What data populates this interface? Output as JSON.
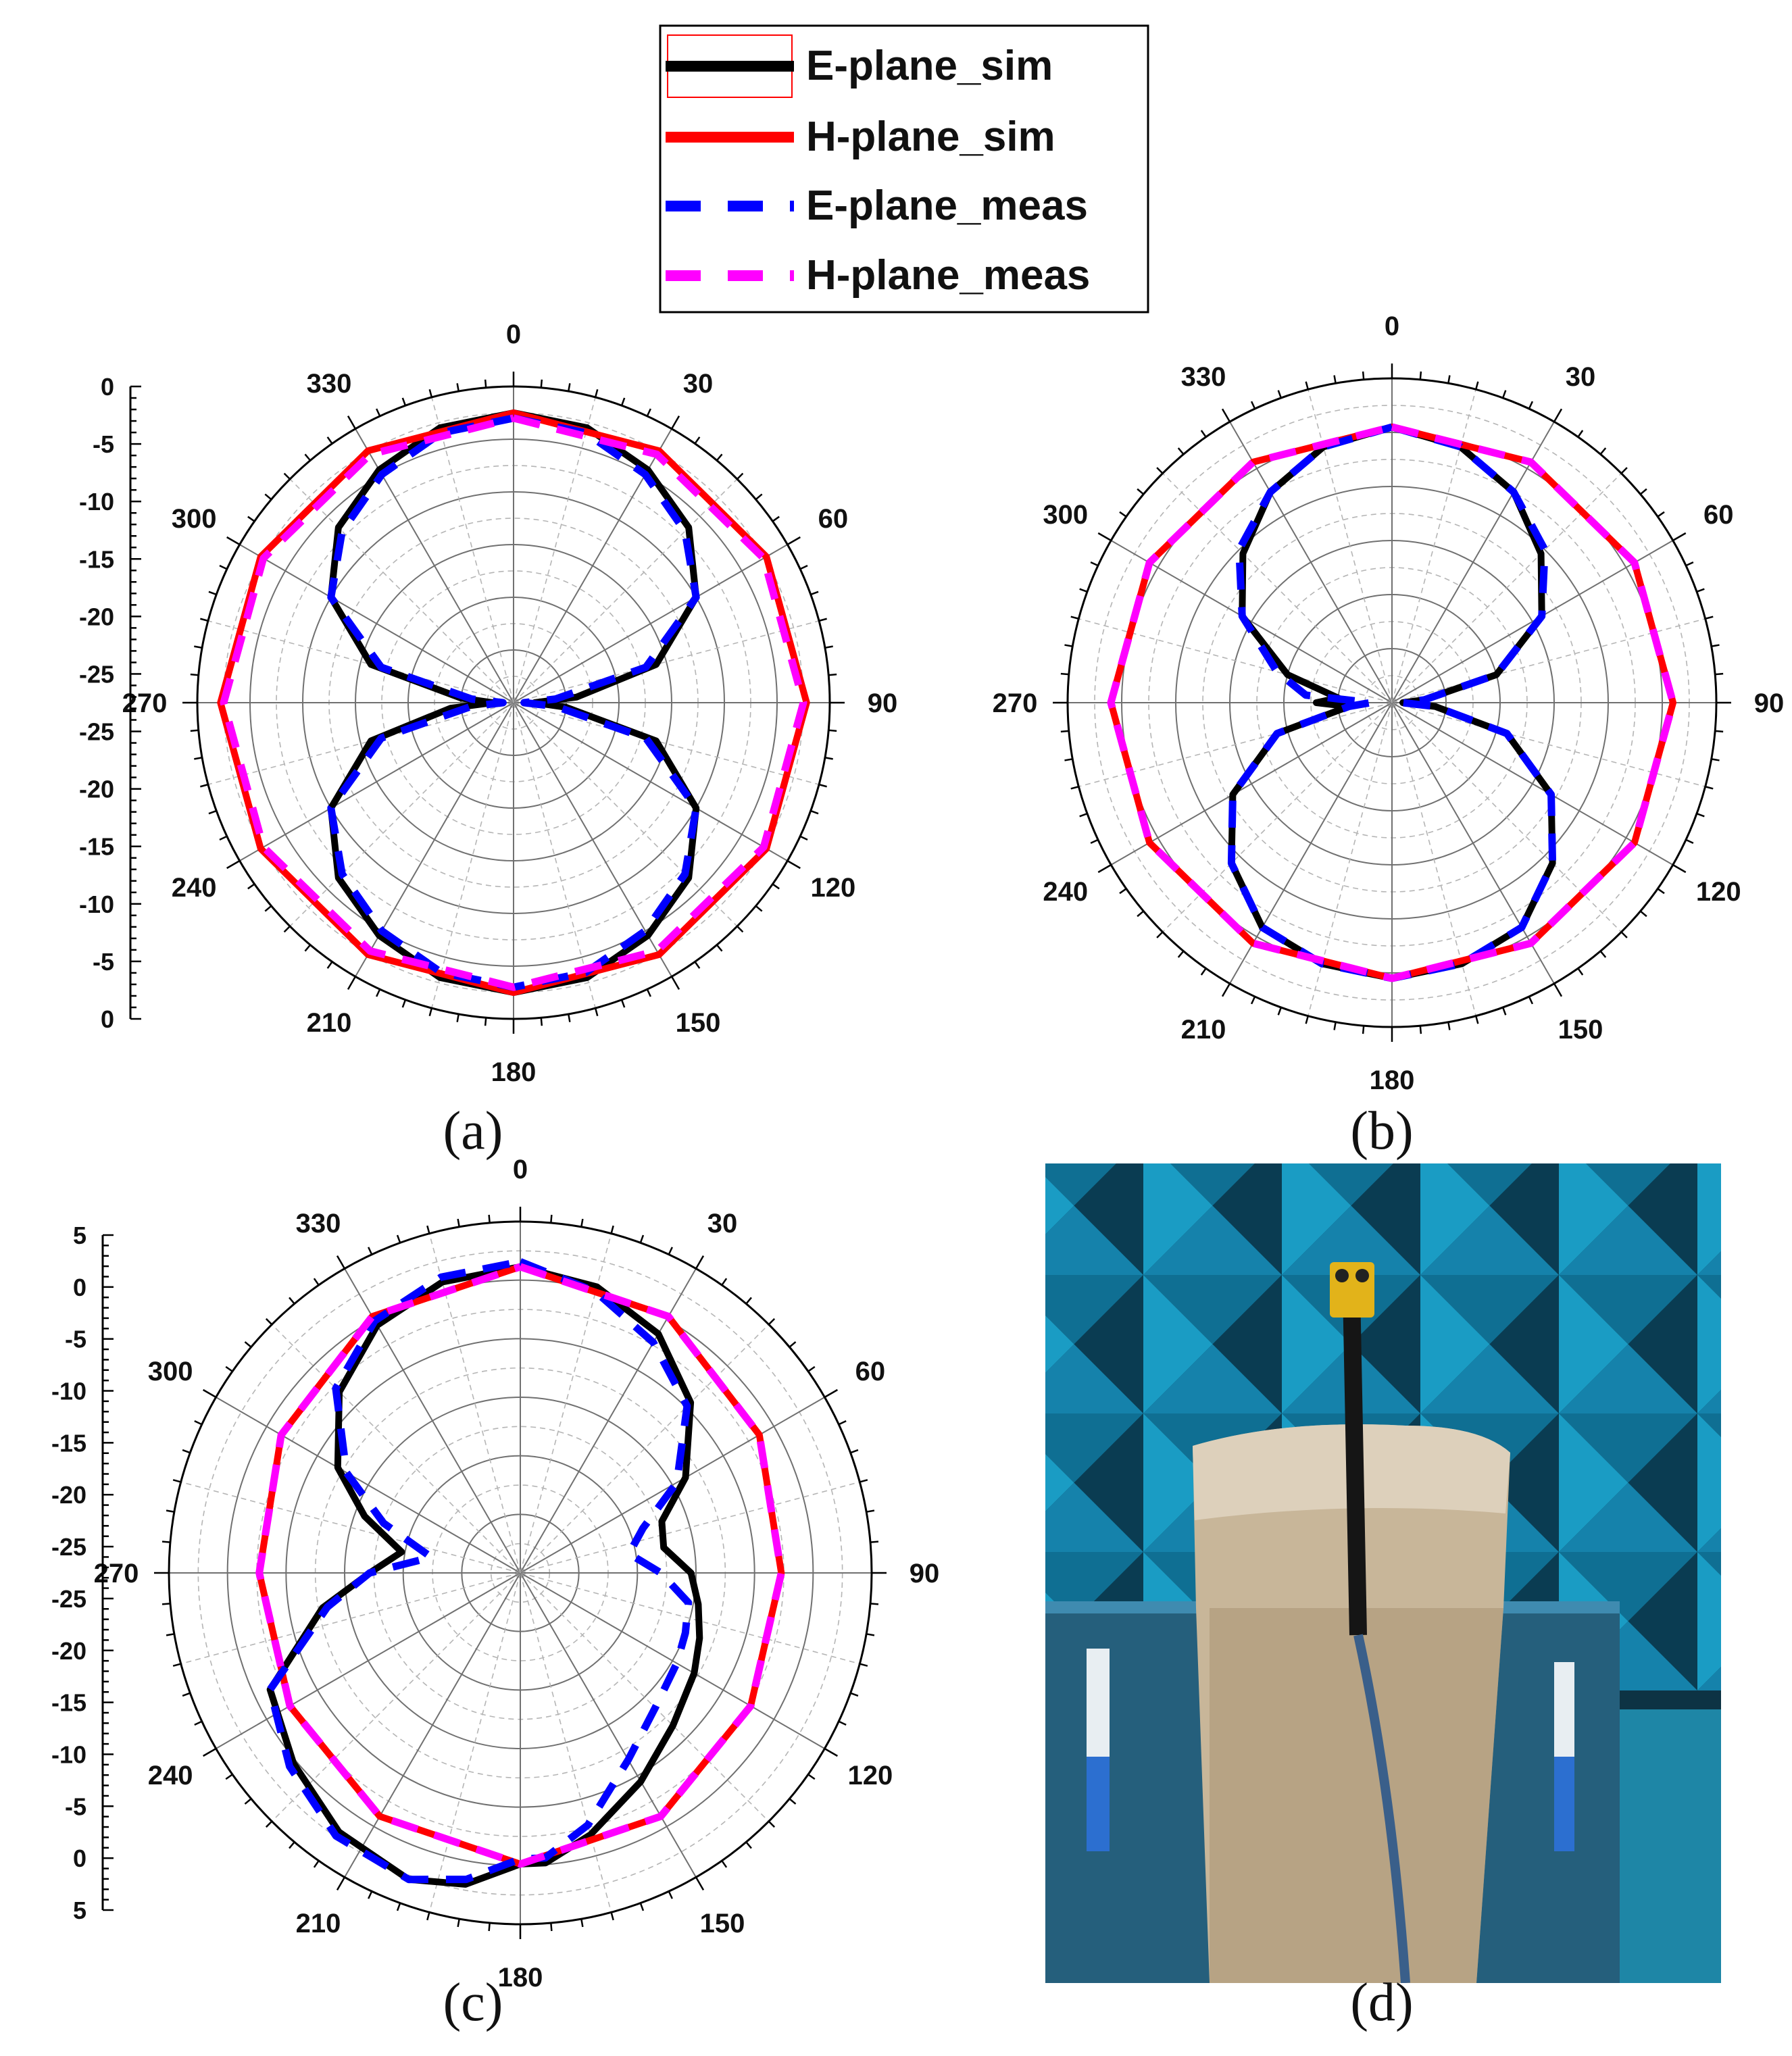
{
  "legend": {
    "entries": [
      {
        "label": "E-plane_sim",
        "color": "#000000",
        "style": "solid"
      },
      {
        "label": "H-plane_sim",
        "color": "#ff0000",
        "style": "solid"
      },
      {
        "label": "E-plane_meas",
        "color": "#0000ff",
        "style": "dashed"
      },
      {
        "label": "H-plane_meas",
        "color": "#ff00ff",
        "style": "dashed"
      }
    ]
  },
  "captions": [
    "(a)",
    "(b)",
    "(c)",
    "(d)"
  ],
  "photo": {
    "description_icon": "antenna-measurement-photo",
    "colors": {
      "absorber": "#1a9cc4",
      "absorber_shadow": "#0a3c52",
      "block": "#c9b79a",
      "frame": "#2a6a8a",
      "connector": "#e0b010"
    }
  },
  "chart_data": [
    {
      "type": "line",
      "polar": true,
      "angle_ticks": [
        "0",
        "30",
        "60",
        "90",
        "120",
        "150",
        "180",
        "210",
        "240",
        "270",
        "300",
        "330"
      ],
      "radial_ticks": [
        "0",
        "-5",
        "-10",
        "-15",
        "-20",
        "-25",
        "-25",
        "-20",
        "-15",
        "-10",
        "-5",
        "0"
      ],
      "rlim": [
        -30,
        0
      ],
      "grid": true,
      "series": [
        {
          "name": "E-plane_sim",
          "color": "#000000",
          "dash": false,
          "theta": [
            0,
            15,
            30,
            45,
            60,
            75,
            85,
            90,
            95,
            105,
            120,
            135,
            150,
            165,
            180,
            195,
            210,
            225,
            240,
            255,
            265,
            270,
            275,
            285,
            300,
            315,
            330,
            345,
            360
          ],
          "r": [
            -2.5,
            -3,
            -4.5,
            -6.5,
            -10,
            -16,
            -24,
            -28,
            -25,
            -16,
            -10,
            -6.5,
            -4.5,
            -3,
            -2.5,
            -3,
            -4.5,
            -6.5,
            -10,
            -16,
            -24,
            -28,
            -25,
            -16,
            -10,
            -6.5,
            -4.5,
            -3,
            -2.5
          ]
        },
        {
          "name": "H-plane_sim",
          "color": "#ff0000",
          "dash": false,
          "theta": [
            0,
            30,
            60,
            90,
            120,
            150,
            180,
            210,
            240,
            270,
            300,
            330,
            360
          ],
          "r": [
            -2.5,
            -2.4,
            -2.3,
            -2.2,
            -2.3,
            -2.4,
            -2.5,
            -2.4,
            -2.3,
            -2.2,
            -2.3,
            -2.4,
            -2.5
          ]
        },
        {
          "name": "E-plane_meas",
          "color": "#0000ff",
          "dash": true,
          "theta": [
            0,
            15,
            30,
            45,
            60,
            75,
            85,
            90,
            95,
            105,
            120,
            135,
            150,
            165,
            180,
            195,
            210,
            225,
            240,
            255,
            265,
            270,
            275,
            285,
            300,
            315,
            330,
            345,
            360
          ],
          "r": [
            -3,
            -3.5,
            -5,
            -7,
            -10,
            -17,
            -26,
            -29,
            -26,
            -17,
            -10,
            -7,
            -5,
            -3.5,
            -3,
            -3.5,
            -5,
            -7,
            -10,
            -17,
            -26,
            -29,
            -26,
            -17,
            -10,
            -7,
            -5,
            -3.5,
            -3
          ]
        },
        {
          "name": "H-plane_meas",
          "color": "#ff00ff",
          "dash": true,
          "theta": [
            0,
            30,
            60,
            90,
            120,
            150,
            180,
            210,
            240,
            270,
            300,
            330,
            360
          ],
          "r": [
            -3,
            -2.8,
            -2.6,
            -2.5,
            -2.6,
            -2.8,
            -3,
            -2.8,
            -2.6,
            -2.5,
            -2.6,
            -2.8,
            -3
          ]
        }
      ]
    },
    {
      "type": "line",
      "polar": true,
      "angle_ticks": [
        "0",
        "30",
        "60",
        "90",
        "120",
        "150",
        "180",
        "210",
        "240",
        "270",
        "300",
        "330"
      ],
      "radial_ticks": [],
      "rlim": [
        -30,
        0
      ],
      "grid": true,
      "series": [
        {
          "name": "E-plane_sim",
          "color": "#000000",
          "dash": false,
          "theta": [
            0,
            15,
            30,
            45,
            60,
            75,
            85,
            90,
            95,
            105,
            120,
            135,
            150,
            165,
            180,
            195,
            210,
            225,
            240,
            255,
            265,
            270,
            275,
            285,
            300,
            315,
            330,
            345,
            360
          ],
          "r": [
            -4.5,
            -5.5,
            -7.5,
            -10.5,
            -14,
            -20,
            -27,
            -29,
            -26,
            -19,
            -13,
            -9,
            -6,
            -5,
            -4.5,
            -5,
            -6,
            -9,
            -13,
            -19,
            -26,
            -23,
            -25,
            -20,
            -14,
            -10.5,
            -7.5,
            -5.5,
            -4.5
          ]
        },
        {
          "name": "H-plane_sim",
          "color": "#ff0000",
          "dash": false,
          "theta": [
            0,
            30,
            60,
            90,
            120,
            150,
            180,
            210,
            240,
            270,
            300,
            330,
            360
          ],
          "r": [
            -4.5,
            -4.3,
            -4.1,
            -4,
            -4.1,
            -4.3,
            -4.5,
            -4.3,
            -4.1,
            -4,
            -4.1,
            -4.3,
            -4.5
          ]
        },
        {
          "name": "E-plane_meas",
          "color": "#0000ff",
          "dash": true,
          "theta": [
            0,
            15,
            30,
            45,
            60,
            75,
            85,
            90,
            95,
            105,
            120,
            135,
            150,
            165,
            180,
            195,
            210,
            225,
            240,
            255,
            265,
            270,
            275,
            285,
            300,
            315,
            330,
            345,
            360
          ],
          "r": [
            -4.5,
            -5.5,
            -7.5,
            -10,
            -14,
            -20,
            -27,
            -29,
            -26,
            -19,
            -13,
            -9,
            -6,
            -5,
            -4.5,
            -5,
            -6,
            -9,
            -13,
            -19,
            -26,
            -28,
            -22,
            -19,
            -14,
            -10,
            -7.5,
            -5.5,
            -4.5
          ]
        },
        {
          "name": "H-plane_meas",
          "color": "#ff00ff",
          "dash": true,
          "theta": [
            0,
            30,
            60,
            90,
            120,
            150,
            180,
            210,
            240,
            270,
            300,
            330,
            360
          ],
          "r": [
            -4.5,
            -4.3,
            -4.1,
            -4,
            -4.1,
            -4.3,
            -4.5,
            -4.3,
            -4.1,
            -4,
            -4.1,
            -4.3,
            -4.5
          ]
        }
      ]
    },
    {
      "type": "line",
      "polar": true,
      "angle_ticks": [
        "0",
        "30",
        "60",
        "90",
        "120",
        "150",
        "180",
        "210",
        "240",
        "270",
        "300",
        "330"
      ],
      "radial_ticks": [
        "5",
        "0",
        "-5",
        "-10",
        "-15",
        "-20",
        "-25",
        "-25",
        "-20",
        "-15",
        "-10",
        "-5",
        "0",
        "5"
      ],
      "rlim": [
        -30,
        5
      ],
      "grid": true,
      "series": [
        {
          "name": "E-plane_sim",
          "color": "#000000",
          "dash": false,
          "theta": [
            0,
            15,
            30,
            45,
            60,
            70,
            80,
            90,
            100,
            110,
            120,
            135,
            150,
            165,
            175,
            180,
            190,
            200,
            215,
            230,
            245,
            260,
            270,
            280,
            290,
            300,
            315,
            330,
            345,
            360
          ],
          "r": [
            0.5,
            -0.5,
            -2.5,
            -6,
            -11,
            -15,
            -15.5,
            -13,
            -12,
            -11,
            -10,
            -8.5,
            -6,
            -3,
            -1,
            -1,
            1.5,
            2.5,
            1.5,
            -0.5,
            -2.5,
            -10,
            -15,
            -18,
            -13.5,
            -9,
            -4.5,
            -1.5,
            0,
            0.5
          ]
        },
        {
          "name": "H-plane_sim",
          "color": "#ff0000",
          "dash": false,
          "theta": [
            0,
            30,
            60,
            90,
            120,
            150,
            180,
            210,
            240,
            270,
            300,
            330,
            360
          ],
          "r": [
            0.5,
            -0.5,
            -2.5,
            -4,
            -3.5,
            -2,
            -1,
            -2,
            -3.5,
            -4,
            -2.5,
            -0.5,
            0.5
          ]
        },
        {
          "name": "E-plane_meas",
          "color": "#0000ff",
          "dash": true,
          "theta": [
            0,
            15,
            30,
            45,
            60,
            70,
            80,
            90,
            100,
            110,
            120,
            135,
            150,
            165,
            175,
            180,
            190,
            200,
            215,
            230,
            245,
            260,
            270,
            280,
            290,
            300,
            315,
            330,
            345,
            360
          ],
          "r": [
            1,
            -1,
            -3.5,
            -6.5,
            -12,
            -17,
            -19,
            -16,
            -13,
            -12.5,
            -12,
            -11,
            -8.5,
            -4,
            -1.5,
            -1.5,
            1,
            2.5,
            2,
            0,
            -2.5,
            -10.5,
            -15,
            -21,
            -15.5,
            -10,
            -4,
            -1,
            0.5,
            1
          ]
        },
        {
          "name": "H-plane_meas",
          "color": "#ff00ff",
          "dash": true,
          "theta": [
            0,
            30,
            60,
            90,
            120,
            150,
            180,
            210,
            240,
            270,
            300,
            330,
            360
          ],
          "r": [
            0.5,
            -0.5,
            -2.5,
            -4,
            -3.5,
            -2,
            -1,
            -2,
            -3.5,
            -4,
            -2.5,
            -0.5,
            0.5
          ]
        }
      ]
    }
  ]
}
